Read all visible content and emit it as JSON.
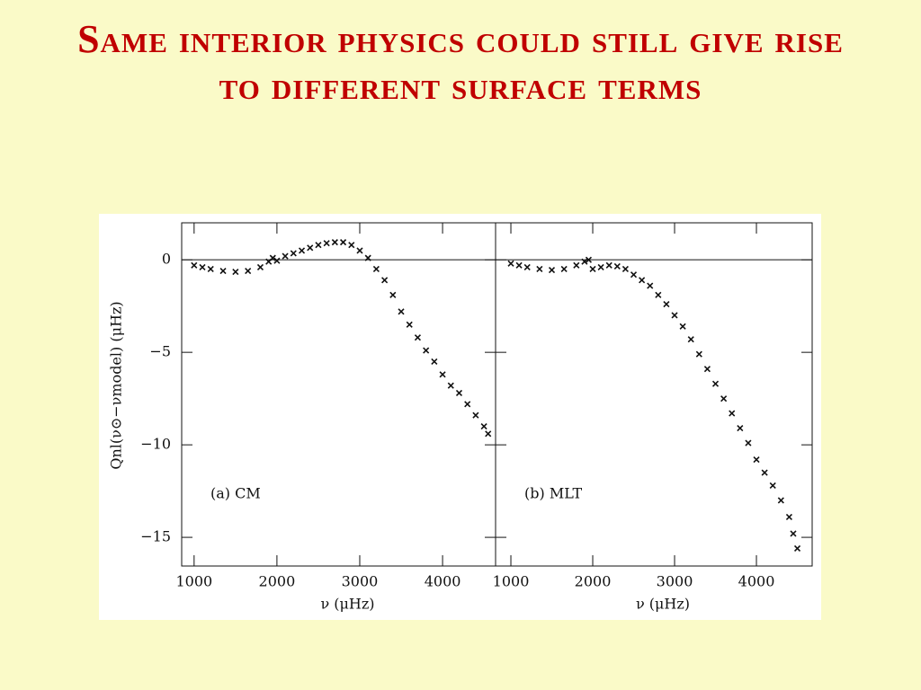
{
  "title": "Same interior physics could still give rise to different surface terms",
  "chart_data": [
    {
      "type": "scatter",
      "annotation": "(a)  CM",
      "xlabel": "ν  (μHz)",
      "ylabel": "Qnl(ν⊙−νmodel)   (μHz)",
      "xlim": [
        850,
        4640
      ],
      "ylim": [
        -16.55,
        2
      ],
      "xticks": [
        1000,
        2000,
        3000,
        4000
      ],
      "yticks": [
        0,
        {
          "value": -5,
          "label": "−5"
        },
        {
          "value": -10,
          "label": "−10"
        },
        {
          "value": -15,
          "label": "−15"
        }
      ],
      "show_ytick_labels": true,
      "reference_line": 0,
      "color": "#111111",
      "x": [
        1000,
        1100,
        1200,
        1350,
        1500,
        1650,
        1800,
        1900,
        1950,
        2000,
        2100,
        2200,
        2300,
        2400,
        2500,
        2600,
        2700,
        2800,
        2900,
        3000,
        3100,
        3200,
        3300,
        3400,
        3500,
        3600,
        3700,
        3800,
        3900,
        4000,
        4100,
        4200,
        4300,
        4400,
        4500,
        4550
      ],
      "y": [
        -0.3,
        -0.4,
        -0.5,
        -0.6,
        -0.65,
        -0.6,
        -0.4,
        -0.1,
        0.1,
        -0.05,
        0.2,
        0.35,
        0.5,
        0.65,
        0.8,
        0.9,
        0.95,
        0.95,
        0.8,
        0.5,
        0.1,
        -0.5,
        -1.1,
        -1.9,
        -2.8,
        -3.5,
        -4.2,
        -4.9,
        -5.5,
        -6.2,
        -6.8,
        -7.2,
        -7.8,
        -8.4,
        -9.0,
        -9.4
      ]
    },
    {
      "type": "scatter",
      "annotation": "(b)  MLT",
      "xlabel": "ν  (μHz)",
      "xlim": [
        813,
        4681
      ],
      "ylim": [
        -16.55,
        2
      ],
      "xticks": [
        1000,
        2000,
        3000,
        4000
      ],
      "yticks": [
        0,
        -5,
        -10,
        -15
      ],
      "show_ytick_labels": false,
      "reference_line": 0,
      "color": "#111111",
      "x": [
        1000,
        1100,
        1200,
        1350,
        1500,
        1650,
        1800,
        1900,
        1950,
        2000,
        2100,
        2200,
        2300,
        2400,
        2500,
        2600,
        2700,
        2800,
        2900,
        3000,
        3100,
        3200,
        3300,
        3400,
        3500,
        3600,
        3700,
        3800,
        3900,
        4000,
        4100,
        4200,
        4300,
        4400,
        4450,
        4500
      ],
      "y": [
        -0.2,
        -0.3,
        -0.4,
        -0.5,
        -0.55,
        -0.5,
        -0.3,
        -0.1,
        0.0,
        -0.5,
        -0.4,
        -0.3,
        -0.35,
        -0.5,
        -0.8,
        -1.1,
        -1.4,
        -1.9,
        -2.4,
        -3.0,
        -3.6,
        -4.3,
        -5.1,
        -5.9,
        -6.7,
        -7.5,
        -8.3,
        -9.1,
        -9.9,
        -10.8,
        -11.5,
        -12.2,
        -13.0,
        -13.9,
        -14.8,
        -15.6
      ]
    }
  ]
}
